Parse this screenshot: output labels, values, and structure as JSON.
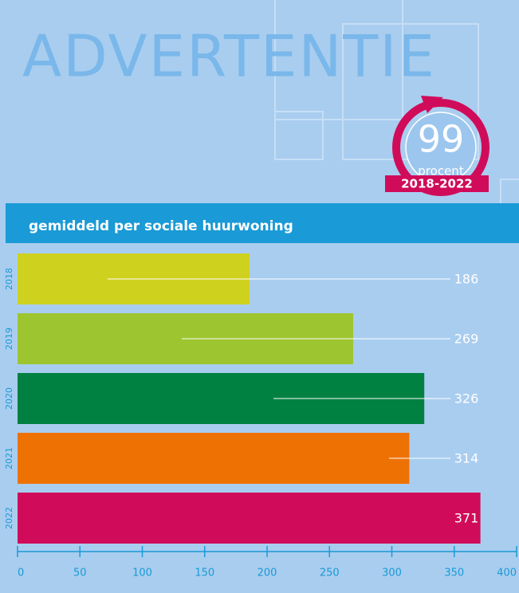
{
  "advert_label": "ADVERTENTIE",
  "badge": {
    "value": "99",
    "unit": "procent",
    "period": "2018-2022"
  },
  "chart_data": {
    "type": "bar",
    "orientation": "horizontal",
    "title": "gemiddeld per sociale huurwoning",
    "categories": [
      "2018",
      "2019",
      "2020",
      "2021",
      "2022"
    ],
    "values": [
      186,
      269,
      326,
      314,
      371
    ],
    "colors": [
      "#cfd11f",
      "#9dc530",
      "#008142",
      "#ee7203",
      "#d00c5a"
    ],
    "xlim": [
      0,
      400
    ],
    "xticks": [
      0,
      50,
      100,
      150,
      200,
      250,
      300,
      350,
      400
    ]
  }
}
